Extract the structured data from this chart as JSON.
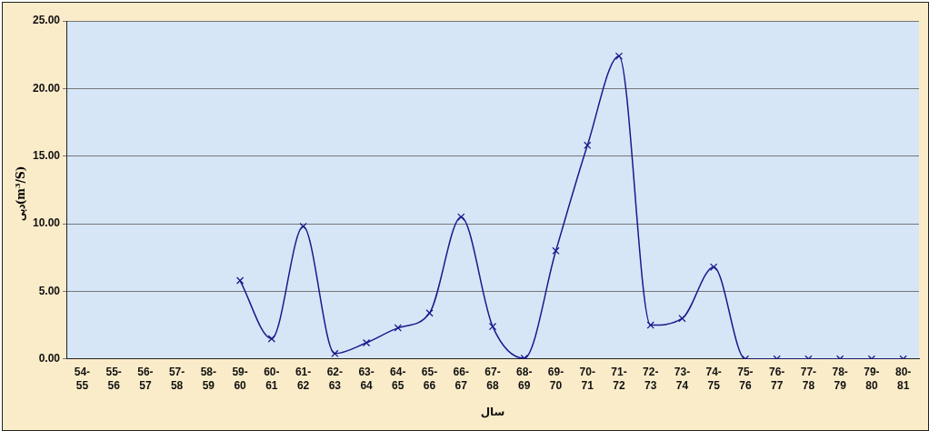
{
  "chart_data": {
    "type": "line",
    "xlabel": "سال",
    "ylabel": "دبی(m$^{3}$/S)",
    "categories": [
      "54-55",
      "55-56",
      "56-57",
      "57-58",
      "58-59",
      "59-60",
      "60-61",
      "61-62",
      "62-63",
      "63-64",
      "64-65",
      "65-66",
      "66-67",
      "67-68",
      "68-69",
      "69-70",
      "70-71",
      "71-72",
      "72-73",
      "73-74",
      "74-75",
      "75-76",
      "76-77",
      "77-78",
      "78-79",
      "79-80",
      "80-81"
    ],
    "series": [
      {
        "color": "#1a1a8c",
        "values": [
          null,
          null,
          null,
          null,
          null,
          5.8,
          1.5,
          9.8,
          0.4,
          1.2,
          2.3,
          3.4,
          10.5,
          2.4,
          0.05,
          8.0,
          15.8,
          22.4,
          2.5,
          3.0,
          6.8,
          0,
          0,
          0,
          0,
          0,
          0
        ]
      }
    ],
    "ylim": [
      0,
      25
    ],
    "yticks": [
      {
        "value": 0,
        "label": "0.00"
      },
      {
        "value": 5,
        "label": "5.00"
      },
      {
        "value": 10,
        "label": "10.00"
      },
      {
        "value": 15,
        "label": "15.00"
      },
      {
        "value": 20,
        "label": "20.00"
      },
      {
        "value": 25,
        "label": "25.00"
      }
    ],
    "grid": "y",
    "legend": false,
    "marker": "cross",
    "line_style": "solid"
  }
}
